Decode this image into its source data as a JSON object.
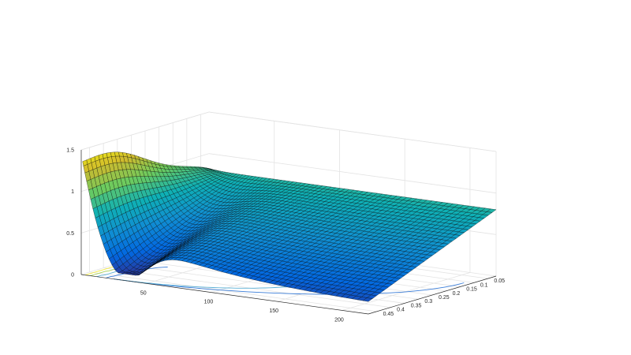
{
  "chart_data": {
    "type": "surface",
    "title": "",
    "xlabel": "",
    "ylabel": "",
    "zlabel": "",
    "colormap": "parula",
    "colormap_stops": [
      "#352a87",
      "#0268e1",
      "#108ed2",
      "#0fb0b5",
      "#6ccb5f",
      "#d0ba2d",
      "#f9fb0e"
    ],
    "edge_color": "#000000",
    "contour_colors": [
      "#3a7dd8",
      "#5bb0d6",
      "#a8d15a",
      "#f2e93c"
    ],
    "grid": true,
    "x_axis": {
      "range": [
        0,
        220
      ],
      "tick_values": [
        50,
        100,
        150,
        200
      ],
      "tick_labels": [
        "50",
        "100",
        "150",
        "200"
      ]
    },
    "y_axis": {
      "range": [
        0.02,
        0.48
      ],
      "tick_values": [
        0.05,
        0.1,
        0.15,
        0.2,
        0.25,
        0.3,
        0.35,
        0.4,
        0.45
      ],
      "tick_labels": [
        "0.05",
        "0.1",
        "0.15",
        "0.2",
        "0.25",
        "0.3",
        "0.35",
        "0.4",
        "0.45"
      ]
    },
    "z_axis": {
      "range": [
        0,
        1.5
      ],
      "tick_values": [
        0,
        0.5,
        1,
        1.5
      ],
      "tick_labels": [
        "0",
        "0.5",
        "1",
        "1.5"
      ]
    },
    "surface_summary": {
      "x_samples": [
        1,
        220
      ],
      "y_samples": [
        0.02,
        0.48
      ],
      "max_z_approx": 1.5,
      "plateau_z_approx": 0.8,
      "min_z_approx": 0.1,
      "description_points": [
        {
          "x": 1,
          "y": 0.48,
          "z": 1.5
        },
        {
          "x": 1,
          "y": 0.2,
          "z": 1.25
        },
        {
          "x": 1,
          "y": 0.02,
          "z": 0.83
        },
        {
          "x": 220,
          "y": 0.02,
          "z": 0.78
        },
        {
          "x": 220,
          "y": 0.48,
          "z": 0.12
        },
        {
          "x": 40,
          "y": 0.48,
          "z": 0.12
        }
      ]
    }
  }
}
